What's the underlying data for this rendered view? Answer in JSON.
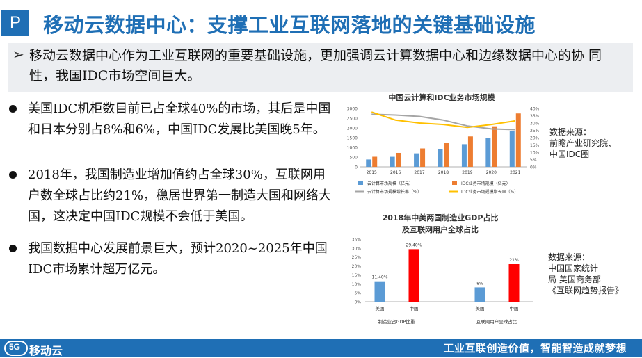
{
  "header": {
    "badge": "P",
    "title": "移动云数据中心：支撑工业互联网落地的关键基础设施"
  },
  "lead": {
    "arrow": "➢",
    "text": "移动云数据中心作为工业互联网的重要基础设施，更加强调云计算数据中心和边缘数据中心的协 同性，我国IDC市场空间巨大。"
  },
  "bullets": [
    "美国IDC机柜数目前已占全球40%的市场，其后是中国和日本分别占8%和6%，中国IDC发展比美国晚5年。",
    "2018年，我国制造业增加值约占全球30%，互联网用户数全球占比约21%，稳居世界第一制造大国和网络大国，这决定中国IDC规模不会低于美国。",
    "我国数据中心发展前景巨大，预计2020~2025年中国IDC市场累计超万亿元。"
  ],
  "source1": [
    "数据来源：",
    "前瞻产业研究院、",
    "中国IDC圈"
  ],
  "source2": [
    "数据来源：",
    "中国国家统计",
    "局 美国商务部",
    "《互联网趋势报告》"
  ],
  "footer": {
    "logo_5g": "5G",
    "logo_name": "移动云",
    "slogan": "工业互联创造价值，智能智造成就梦想"
  },
  "colors": {
    "brand": "#1f6fb5",
    "cloud_bar": "#5b9bd5",
    "idc_bar": "#ed7d31",
    "gdp_china": "#ff0000"
  },
  "chart_data": [
    {
      "type": "bar",
      "title": "中国云计算和IDC业务市场规模",
      "categories": [
        "2015",
        "2016",
        "2017",
        "2018",
        "2019",
        "2020",
        "2021"
      ],
      "series": [
        {
          "name": "云计算市场规模（亿元）",
          "kind": "bar",
          "axis": "left",
          "color": "#5b9bd5",
          "values": [
            378,
            515,
            692,
            907,
            1165,
            1465,
            1838
          ]
        },
        {
          "name": "IDC业务市场规模（亿元）",
          "kind": "bar",
          "axis": "left",
          "color": "#ed7d31",
          "values": [
            518,
            715,
            946,
            1228,
            1562,
            2083,
            2742
          ]
        },
        {
          "name": "云计算市场规模增长率（%）",
          "kind": "line",
          "axis": "right",
          "color": "#a5a5a5",
          "values": [
            36,
            35.5,
            34.5,
            32,
            28,
            26,
            25.5
          ]
        },
        {
          "name": "IDC业务市场规模增长率（%）",
          "kind": "line",
          "axis": "right",
          "color": "#ffc000",
          "values": [
            37.5,
            32,
            30,
            29,
            27,
            29,
            31.5
          ]
        }
      ],
      "yticks_left": [
        "0",
        "500",
        "1000",
        "1500",
        "2000",
        "2500",
        "3000"
      ],
      "yticks_right": [
        "0%",
        "5%",
        "10%",
        "15%",
        "20%",
        "25%",
        "30%",
        "35%",
        "40%"
      ],
      "ylim_left": [
        0,
        3000
      ],
      "ylim_right": [
        0,
        40
      ],
      "legend": "bottom"
    },
    {
      "type": "bar",
      "title": [
        "2018年中美两国制造业GDP占比",
        "及互联网用户全球占比"
      ],
      "groups": [
        {
          "label": "制造业占GDP比重",
          "categories": [
            "美国",
            "中国"
          ],
          "values": [
            11.4,
            29.4
          ],
          "labels": [
            "11.40%",
            "29.40%"
          ],
          "colors": [
            "#5b9bd5",
            "#ff0000"
          ]
        },
        {
          "label": "互联网用户全球占比",
          "categories": [
            "美国",
            "中国"
          ],
          "values": [
            8,
            21
          ],
          "labels": [
            "8%",
            "21%"
          ],
          "colors": [
            "#5b9bd5",
            "#ff0000"
          ]
        }
      ],
      "yticks": [
        "0%",
        "5%",
        "10%",
        "15%",
        "20%",
        "25%",
        "30%",
        "35%"
      ],
      "ylim": [
        0,
        35
      ]
    }
  ]
}
